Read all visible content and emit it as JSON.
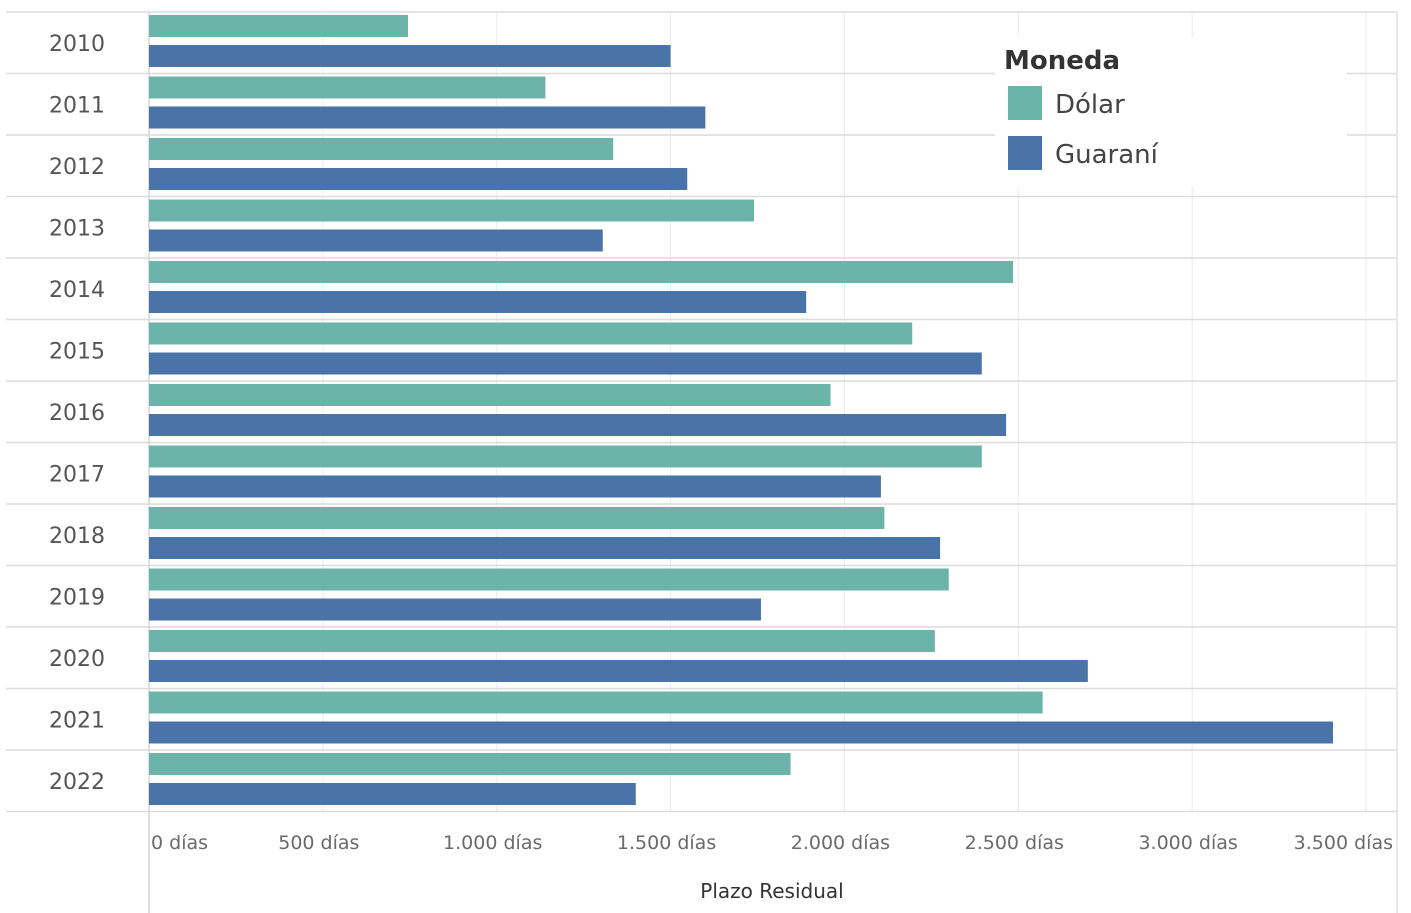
{
  "chart_data": {
    "type": "bar",
    "orientation": "horizontal",
    "categories": [
      "2010",
      "2011",
      "2012",
      "2013",
      "2014",
      "2015",
      "2016",
      "2017",
      "2018",
      "2019",
      "2020",
      "2021",
      "2022"
    ],
    "series": [
      {
        "name": "Dólar",
        "color": "#6cb4aa",
        "values": [
          745,
          1140,
          1335,
          1740,
          2485,
          2195,
          1960,
          2395,
          2115,
          2300,
          2260,
          2570,
          1845
        ]
      },
      {
        "name": "Guaraní",
        "color": "#4a74a8",
        "values": [
          1500,
          1600,
          1548,
          1305,
          1890,
          2395,
          2465,
          2105,
          2275,
          1760,
          2700,
          3405,
          1400
        ]
      }
    ],
    "xlabel": "Plazo Residual",
    "xlim": [
      0,
      3500
    ],
    "ticks": [
      0,
      500,
      1000,
      1500,
      2000,
      2500,
      3000,
      3500
    ],
    "tick_labels": [
      "0 días",
      "500 días",
      "1.000 días",
      "1.500 días",
      "2.000 días",
      "2.500 días",
      "3.000 días",
      "3.500 días"
    ],
    "legend": {
      "title": "Moneda",
      "placement": "top-right"
    },
    "grid": true
  }
}
